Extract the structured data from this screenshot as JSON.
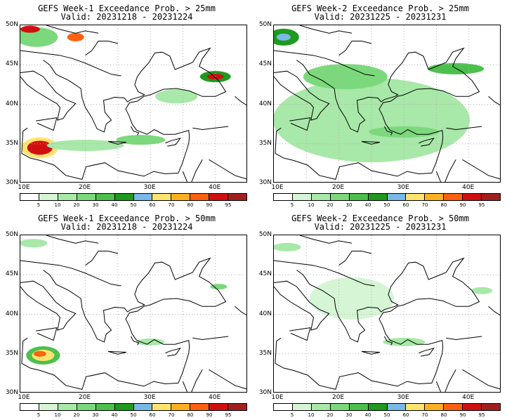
{
  "panels": [
    {
      "title": "GEFS Week-1 Exceedance Prob. > 25mm",
      "valid": "Valid: 20231218 - 20231224",
      "prob": [
        {
          "lon": 13.0,
          "lat": 34.5,
          "rx": 26,
          "ry": 15,
          "level": 60
        },
        {
          "lon": 13.0,
          "lat": 34.5,
          "rx": 18,
          "ry": 10,
          "level": 90
        },
        {
          "lon": 20.0,
          "lat": 34.8,
          "rx": 55,
          "ry": 8,
          "level": 10
        },
        {
          "lon": 28.5,
          "lat": 35.5,
          "rx": 35,
          "ry": 7,
          "level": 20
        },
        {
          "lon": 40.0,
          "lat": 43.5,
          "rx": 22,
          "ry": 8,
          "level": 40
        },
        {
          "lon": 40.0,
          "lat": 43.5,
          "rx": 12,
          "ry": 4,
          "level": 90
        },
        {
          "lon": 12.5,
          "lat": 48.5,
          "rx": 30,
          "ry": 14,
          "level": 20
        },
        {
          "lon": 11.5,
          "lat": 49.5,
          "rx": 14,
          "ry": 5,
          "level": 90
        },
        {
          "lon": 18.5,
          "lat": 48.5,
          "rx": 12,
          "ry": 6,
          "level": 80
        },
        {
          "lon": 34.0,
          "lat": 41.0,
          "rx": 30,
          "ry": 10,
          "level": 10
        }
      ]
    },
    {
      "title": "GEFS Week-2 Exceedance Prob. > 25mm",
      "valid": "Valid: 20231225 - 20231231",
      "prob": [
        {
          "lon": 25.0,
          "lat": 38.0,
          "rx": 140,
          "ry": 60,
          "level": 10
        },
        {
          "lon": 21.0,
          "lat": 43.5,
          "rx": 60,
          "ry": 18,
          "level": 20
        },
        {
          "lon": 11.5,
          "lat": 48.5,
          "rx": 22,
          "ry": 12,
          "level": 40
        },
        {
          "lon": 11.5,
          "lat": 48.5,
          "rx": 10,
          "ry": 5,
          "level": 50
        },
        {
          "lon": 38.0,
          "lat": 44.5,
          "rx": 40,
          "ry": 8,
          "level": 30
        },
        {
          "lon": 30.0,
          "lat": 36.5,
          "rx": 50,
          "ry": 8,
          "level": 20
        }
      ]
    },
    {
      "title": "GEFS Week-1 Exceedance Prob. > 50mm",
      "valid": "Valid: 20231218 - 20231224",
      "prob": [
        {
          "lon": 13.5,
          "lat": 34.8,
          "rx": 24,
          "ry": 13,
          "level": 30
        },
        {
          "lon": 13.5,
          "lat": 34.8,
          "rx": 16,
          "ry": 8,
          "level": 60
        },
        {
          "lon": 13.0,
          "lat": 35.0,
          "rx": 9,
          "ry": 4,
          "level": 80
        },
        {
          "lon": 12.0,
          "lat": 49.0,
          "rx": 20,
          "ry": 6,
          "level": 10
        },
        {
          "lon": 40.5,
          "lat": 43.5,
          "rx": 12,
          "ry": 4,
          "level": 20
        },
        {
          "lon": 30.0,
          "lat": 36.5,
          "rx": 20,
          "ry": 5,
          "level": 10
        }
      ]
    },
    {
      "title": "GEFS Week-2 Exceedance Prob. > 50mm",
      "valid": "Valid: 20231225 - 20231231",
      "prob": [
        {
          "lon": 22.0,
          "lat": 42.0,
          "rx": 60,
          "ry": 30,
          "level": 5
        },
        {
          "lon": 12.0,
          "lat": 48.5,
          "rx": 20,
          "ry": 6,
          "level": 10
        },
        {
          "lon": 30.0,
          "lat": 36.5,
          "rx": 30,
          "ry": 6,
          "level": 10
        },
        {
          "lon": 42.0,
          "lat": 43.0,
          "rx": 15,
          "ry": 5,
          "level": 10
        }
      ]
    }
  ],
  "axis": {
    "lat_labels": [
      "50N",
      "45N",
      "40N",
      "35N",
      "30N"
    ],
    "lon_labels": [
      "10E",
      "20E",
      "30E",
      "40E"
    ],
    "lat_range": [
      30,
      50
    ],
    "lon_range": [
      10,
      45
    ]
  },
  "colorbar": {
    "levels": [
      "5",
      "10",
      "20",
      "30",
      "40",
      "50",
      "60",
      "70",
      "80",
      "90",
      "95"
    ],
    "colors": [
      "#ffffff",
      "#d5f5d5",
      "#a8e8a8",
      "#7cd87c",
      "#4cc04c",
      "#1e9a1e",
      "#7ab8e8",
      "#ffe470",
      "#ffb020",
      "#ff6010",
      "#d01010",
      "#a02020"
    ]
  },
  "colors": {
    "coast": "#000000",
    "grid": "#b0b0b0"
  }
}
